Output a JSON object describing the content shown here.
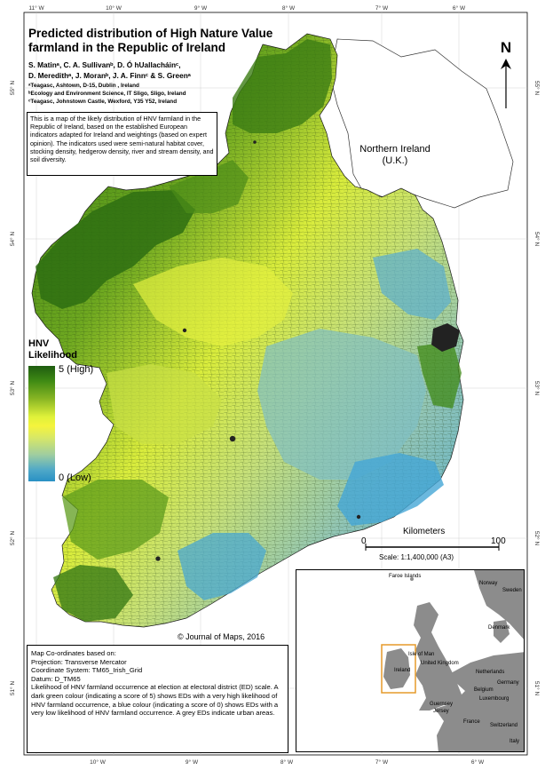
{
  "title": "Predicted distribution of High Nature Value farmland in the Republic of Ireland",
  "authors": {
    "line1": "S. Matinᵃ, C. A. Sullivanᵇ, D. Ó hUallacháinᶜ,",
    "line2": "D. Meredithᵃ, J. Moranᵇ, J. A. Finnᶜ & S. Greenᵃ"
  },
  "affiliations": {
    "a": "ᵃTeagasc, Ashtown, D-15, Dublin , Ireland",
    "b": "ᵇEcology and Environment Science, IT Sligo, Sligo, Ireland",
    "c": "ᶜTeagasc, Johnstown Castle, Wexford, Y35 Y52, Ireland"
  },
  "description": "This is a map of the likely distribution of HNV farmland in the Republic of Ireland, based on the established European indicators adapted for Ireland and weightings (based on expert opinion). The indicators used were semi-natural habitat cover, stocking density, hedgerow density, river and stream density, and soil diversity.",
  "northern_ireland_label": {
    "line1": "Northern Ireland",
    "line2": "(U.K.)"
  },
  "north_arrow": "N",
  "legend": {
    "title_line1": "HNV",
    "title_line2": "Likelihood",
    "high": "5 (High)",
    "low": "0 (Low)",
    "color_high": "#1e5c10",
    "color_mid": "#f5f43c",
    "color_low": "#2990c4"
  },
  "graticule": {
    "lon_labels": [
      "11° W",
      "10° W",
      "9° W",
      "8° W",
      "7° W",
      "6° W"
    ],
    "lat_labels": [
      "55° N",
      "54° N",
      "53° N",
      "52° N",
      "51° N"
    ]
  },
  "scale": {
    "unit": "Kilometers",
    "zero": "0",
    "max": "100",
    "text": "Scale: 1:1,400,000 (A3)"
  },
  "inset": {
    "countries": {
      "faroe": "Faroe Islands",
      "norway": "Norway",
      "sweden": "Sweden",
      "denmark": "Denmark",
      "isle_of_man": "Isle of Man",
      "uk": "United Kingdom",
      "ireland": "Ireland",
      "netherlands": "Netherlands",
      "germany": "Germany",
      "belgium": "Belgium",
      "luxembourg": "Luxembourg",
      "guernsey": "Guernsey",
      "jersey": "Jersey",
      "france": "France",
      "switzerland": "Switzerland",
      "italy": "Italy"
    },
    "land_color": "#8c8c8c",
    "highlight_color": "#e59a2a"
  },
  "copyright": "© Journal of Maps, 2016",
  "notes": {
    "heading": "Map Co-ordinates based on:",
    "projection": "Projection: Transverse Mercator",
    "coordinate_system": "Coordinate System: TM65_Irish_Grid",
    "datum": "Datum: D_TM65",
    "body": "Likelihood of HNV farmland occurrence at election at electoral district (ED) scale. A dark green colour (indicating a score of 5) shows EDs with a very high likelihood of HNV farmland occurrence, a blue colour (indicating a score of 0) shows EDs with a very low likelihood of HNV farmland occurrence. A grey EDs indicate urban areas."
  }
}
